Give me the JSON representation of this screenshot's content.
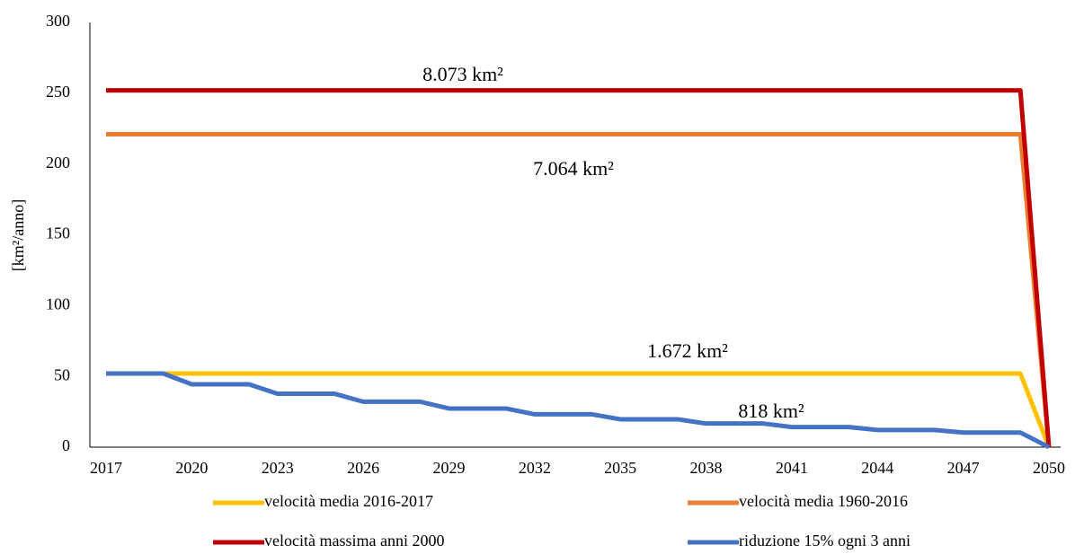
{
  "chart_data": {
    "type": "line",
    "y_label": "[km²/anno]",
    "x": [
      2017,
      2018,
      2019,
      2020,
      2021,
      2022,
      2023,
      2024,
      2025,
      2026,
      2027,
      2028,
      2029,
      2030,
      2031,
      2032,
      2033,
      2034,
      2035,
      2036,
      2037,
      2038,
      2039,
      2040,
      2041,
      2042,
      2043,
      2044,
      2045,
      2046,
      2047,
      2048,
      2049,
      2050
    ],
    "xlim": [
      2017,
      2050
    ],
    "xticks": [
      2017,
      2020,
      2023,
      2026,
      2029,
      2032,
      2035,
      2038,
      2041,
      2044,
      2047,
      2050
    ],
    "ylim": [
      0,
      300
    ],
    "yticks": [
      0,
      50,
      100,
      150,
      200,
      250,
      300
    ],
    "series": [
      {
        "name": "velocità media 2016-2017",
        "color": "#ffc000",
        "values": [
          52,
          52,
          52,
          52,
          52,
          52,
          52,
          52,
          52,
          52,
          52,
          52,
          52,
          52,
          52,
          52,
          52,
          52,
          52,
          52,
          52,
          52,
          52,
          52,
          52,
          52,
          52,
          52,
          52,
          52,
          52,
          52,
          52,
          0
        ]
      },
      {
        "name": "velocità media 1960-2016",
        "color": "#ed7d31",
        "values": [
          221,
          221,
          221,
          221,
          221,
          221,
          221,
          221,
          221,
          221,
          221,
          221,
          221,
          221,
          221,
          221,
          221,
          221,
          221,
          221,
          221,
          221,
          221,
          221,
          221,
          221,
          221,
          221,
          221,
          221,
          221,
          221,
          221,
          0
        ]
      },
      {
        "name": "velocità massima anni 2000",
        "color": "#c00000",
        "values": [
          252,
          252,
          252,
          252,
          252,
          252,
          252,
          252,
          252,
          252,
          252,
          252,
          252,
          252,
          252,
          252,
          252,
          252,
          252,
          252,
          252,
          252,
          252,
          252,
          252,
          252,
          252,
          252,
          252,
          252,
          252,
          252,
          252,
          0
        ]
      },
      {
        "name": "riduzione 15% ogni 3 anni",
        "color": "#4472c4",
        "values": [
          52,
          52,
          52,
          44.4,
          44.4,
          44.4,
          37.7,
          37.7,
          37.7,
          32.1,
          32.1,
          32.1,
          27.3,
          27.3,
          27.3,
          23.2,
          23.2,
          23.2,
          19.7,
          19.7,
          19.7,
          16.7,
          16.7,
          16.7,
          14.2,
          14.2,
          14.2,
          12.1,
          12.1,
          12.1,
          10.3,
          10.3,
          10.3,
          0
        ]
      }
    ],
    "annotations": [
      "8.073 km²",
      "7.064 km²",
      "1.672 km²",
      "818 km²"
    ],
    "legend": "bottom"
  }
}
